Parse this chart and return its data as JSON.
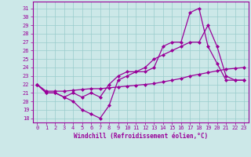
{
  "x": [
    0,
    1,
    2,
    3,
    4,
    5,
    6,
    7,
    8,
    9,
    10,
    11,
    12,
    13,
    14,
    15,
    16,
    17,
    18,
    19,
    20,
    21,
    22,
    23
  ],
  "line1": [
    22,
    21,
    21,
    20.5,
    20,
    19,
    18.5,
    18,
    19.5,
    22.5,
    23,
    23.5,
    23.5,
    24,
    26.5,
    27,
    27,
    30.5,
    31,
    26.5,
    24.5,
    22.5,
    22.5,
    22.5
  ],
  "line2": [
    22,
    21,
    21,
    20.5,
    21,
    20.5,
    21,
    20.5,
    22,
    23,
    23.5,
    23.5,
    24,
    25,
    25.5,
    26,
    26.5,
    27,
    27,
    29,
    26.5,
    23,
    22.5,
    22.5
  ],
  "line3": [
    22,
    21.2,
    21.2,
    21.2,
    21.3,
    21.4,
    21.5,
    21.5,
    21.6,
    21.7,
    21.8,
    21.9,
    22,
    22.1,
    22.3,
    22.5,
    22.7,
    23,
    23.2,
    23.4,
    23.6,
    23.8,
    23.9,
    24
  ],
  "bg_color": "#cce8e8",
  "line_color": "#990099",
  "grid_color": "#99cccc",
  "marker": "D",
  "marker_size": 2.0,
  "linewidth": 0.9,
  "xlabel": "Windchill (Refroidissement éolien,°C)",
  "ylabel_ticks": [
    18,
    19,
    20,
    21,
    22,
    23,
    24,
    25,
    26,
    27,
    28,
    29,
    30,
    31
  ],
  "xlim": [
    -0.5,
    23.5
  ],
  "ylim": [
    17.5,
    31.8
  ],
  "tick_fontsize": 5.0,
  "xlabel_fontsize": 5.5,
  "tick_color": "#990099",
  "xlabel_color": "#990099",
  "spine_color": "#990099"
}
